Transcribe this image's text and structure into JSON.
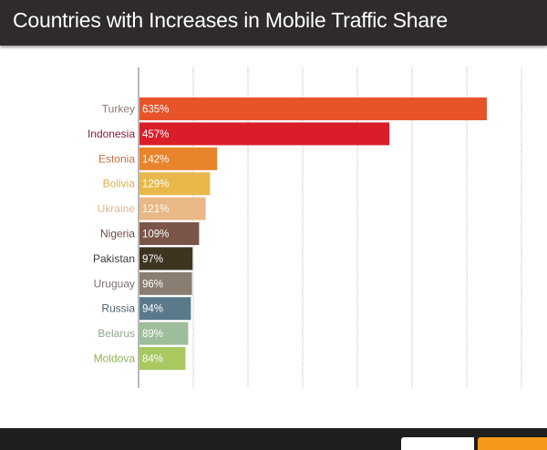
{
  "title": "Countries with Increases in Mobile Traffic Share",
  "chart_data": {
    "type": "bar",
    "orientation": "horizontal",
    "title": "Countries with Increases in Mobile Traffic Share",
    "grid": true,
    "xlim": [
      0,
      700
    ],
    "categories": [
      "Turkey",
      "Indonesia",
      "Estonia",
      "Bolivia",
      "Ukraine",
      "Nigeria",
      "Pakistan",
      "Uruguay",
      "Russia",
      "Belarus",
      "Moldova"
    ],
    "values": [
      635,
      457,
      142,
      129,
      121,
      109,
      97,
      96,
      94,
      89,
      84
    ],
    "value_labels": [
      "635%",
      "457%",
      "142%",
      "129%",
      "121%",
      "109%",
      "97%",
      "96%",
      "94%",
      "89%",
      "84%"
    ],
    "bar_colors": [
      "#e8542a",
      "#d91e2a",
      "#e8842b",
      "#e8b84a",
      "#e8b887",
      "#7a5548",
      "#3e3420",
      "#8a7e72",
      "#5a7a8c",
      "#9ebd9a",
      "#a8c860"
    ],
    "label_colors": [
      "#8a7a70",
      "#8a1a40",
      "#c07040",
      "#d8b050",
      "#e0b890",
      "#6a4a40",
      "#3a3a3a",
      "#7a7070",
      "#4a6070",
      "#90a890",
      "#90b050"
    ]
  },
  "footer": {
    "brand_colors": [
      "#ffffff",
      "#f7981d"
    ]
  }
}
